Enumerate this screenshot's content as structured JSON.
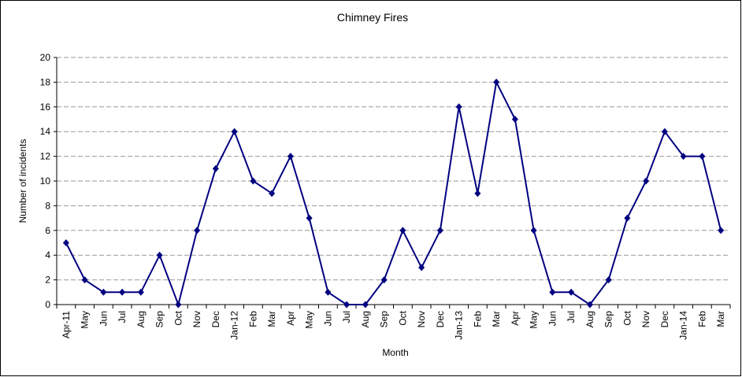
{
  "chart_data": {
    "type": "line",
    "title": "Chimney Fires",
    "x_label": "Month",
    "y_label": "Number of incidents",
    "categories": [
      "Apr-11",
      "May",
      "Jun",
      "Jul",
      "Aug",
      "Sep",
      "Oct",
      "Nov",
      "Dec",
      "Jan-12",
      "Feb",
      "Mar",
      "Apr",
      "May",
      "Jun",
      "Jul",
      "Aug",
      "Sep",
      "Oct",
      "Nov",
      "Dec",
      "Jan-13",
      "Feb",
      "Mar",
      "Apr",
      "May",
      "Jun",
      "Jul",
      "Aug",
      "Sep",
      "Oct",
      "Nov",
      "Dec",
      "Jan-14",
      "Feb",
      "Mar"
    ],
    "values": [
      5,
      2,
      1,
      1,
      1,
      4,
      0,
      6,
      11,
      14,
      10,
      9,
      12,
      7,
      1,
      0,
      0,
      2,
      6,
      3,
      6,
      16,
      9,
      18,
      15,
      6,
      1,
      1,
      0,
      2,
      7,
      10,
      14,
      12,
      12,
      6
    ],
    "color": "#000080",
    "ylim": [
      0,
      20
    ],
    "yticks": [
      0,
      2,
      4,
      6,
      8,
      10,
      12,
      14,
      16,
      18,
      20
    ],
    "grid": true
  }
}
